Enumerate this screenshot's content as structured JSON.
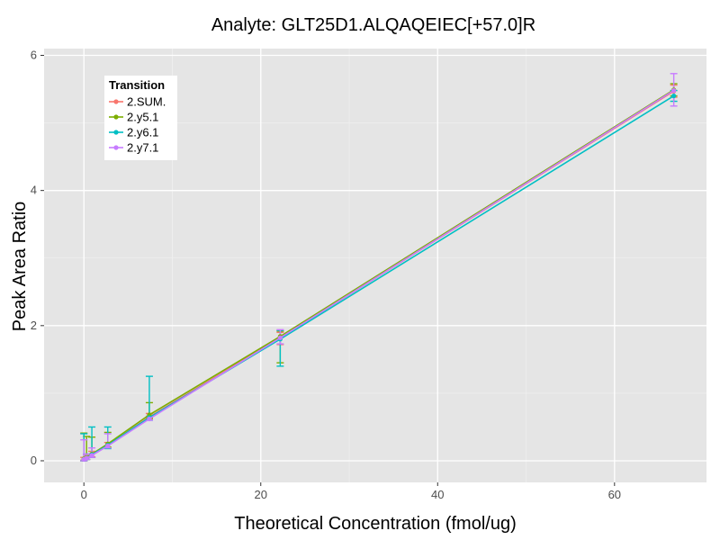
{
  "chart_data": {
    "type": "line",
    "title": "Analyte: GLT25D1.ALQAQEIEC[+57.0]R",
    "xlabel": "Theoretical Concentration (fmol/ug)",
    "ylabel": "Peak Area Ratio",
    "xlim": [
      -4.5,
      70.4
    ],
    "ylim": [
      -0.32,
      6.1
    ],
    "x_ticks": [
      0,
      20,
      40,
      60
    ],
    "y_ticks": [
      0,
      2,
      4,
      6
    ],
    "legend": {
      "title": "Transition",
      "position": "top-left"
    },
    "x": [
      0,
      0.3,
      0.9,
      2.7,
      7.4,
      22.2,
      66.7
    ],
    "series": [
      {
        "name": "2.SUM.",
        "color": "#F8766D",
        "values": [
          0.02,
          0.04,
          0.09,
          0.23,
          0.65,
          1.82,
          5.47
        ],
        "err_low": [
          0.01,
          0.02,
          0.06,
          0.2,
          0.62,
          1.72,
          5.38
        ],
        "err_high": [
          0.05,
          0.08,
          0.14,
          0.27,
          0.7,
          1.9,
          5.56
        ]
      },
      {
        "name": "2.y5.1",
        "color": "#7CAE00",
        "values": [
          0.03,
          0.05,
          0.1,
          0.25,
          0.68,
          1.84,
          5.49
        ],
        "err_low": [
          0.0,
          0.02,
          0.05,
          0.2,
          0.63,
          1.45,
          5.4
        ],
        "err_high": [
          0.41,
          0.36,
          0.35,
          0.42,
          0.86,
          1.92,
          5.58
        ]
      },
      {
        "name": "2.y6.1",
        "color": "#00BFC4",
        "values": [
          0.02,
          0.04,
          0.09,
          0.23,
          0.64,
          1.8,
          5.4
        ],
        "err_low": [
          0.0,
          0.02,
          0.05,
          0.18,
          0.6,
          1.4,
          5.32
        ],
        "err_high": [
          0.4,
          0.1,
          0.5,
          0.5,
          1.25,
          1.93,
          5.48
        ]
      },
      {
        "name": "2.y7.1",
        "color": "#C77CFF",
        "values": [
          0.02,
          0.04,
          0.08,
          0.22,
          0.62,
          1.82,
          5.48
        ],
        "err_low": [
          0.0,
          0.02,
          0.05,
          0.19,
          0.6,
          1.73,
          5.25
        ],
        "err_high": [
          0.31,
          0.1,
          0.19,
          0.4,
          0.66,
          1.94,
          5.73
        ]
      }
    ]
  }
}
